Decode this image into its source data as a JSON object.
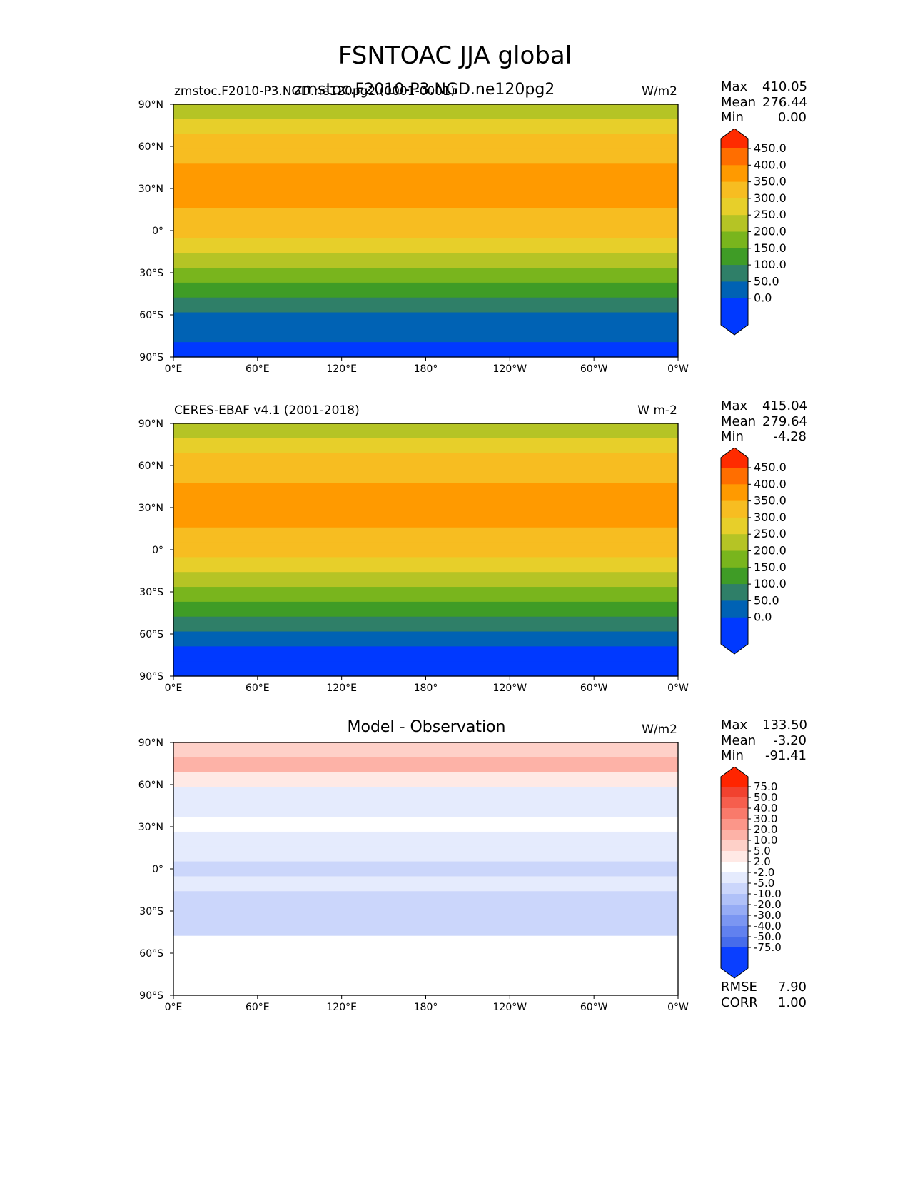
{
  "figure_title": "FSNTOAC JJA global",
  "lon_ticks": [
    "0°E",
    "60°E",
    "120°E",
    "180°",
    "120°W",
    "60°W",
    "0°W"
  ],
  "lat_ticks": [
    "90°N",
    "60°N",
    "30°N",
    "0°",
    "30°S",
    "60°S",
    "90°S"
  ],
  "chart_data": [
    {
      "type": "heatmap",
      "panel": "test",
      "title_left": "zmstoc.F2010-P3.NGD.ne120pg2.(0001-0001)",
      "title_center": "zmstoc.F2010-P3.NGD.ne120pg2",
      "title_right": "W/m2",
      "stats": {
        "max_label": "Max",
        "max": "410.05",
        "mean_label": "Mean",
        "mean": "276.44",
        "min_label": "Min",
        "min": "0.00"
      },
      "levels": [
        "450.0",
        "400.0",
        "350.0",
        "300.0",
        "250.0",
        "200.0",
        "150.0",
        "100.0",
        "50.0",
        "0.0"
      ],
      "colors": [
        "#ff2b00",
        "#ff6e00",
        "#ff9a00",
        "#f7bd21",
        "#e7cf2a",
        "#b5c425",
        "#79b51d",
        "#3f9c26",
        "#2f7f68",
        "#0062b4",
        "#0039ff"
      ],
      "zonal_band_levels": [
        5,
        4,
        3,
        3,
        2,
        2,
        2,
        3,
        3,
        4,
        5,
        6,
        7,
        8,
        9,
        9,
        10
      ]
    },
    {
      "type": "heatmap",
      "panel": "reference",
      "title_left": "CERES-EBAF v4.1 (2001-2018)",
      "title_center": "",
      "title_right": "W m-2",
      "stats": {
        "max_label": "Max",
        "max": "415.04",
        "mean_label": "Mean",
        "mean": "279.64",
        "min_label": "Min",
        "min": "-4.28"
      },
      "levels": [
        "450.0",
        "400.0",
        "350.0",
        "300.0",
        "250.0",
        "200.0",
        "150.0",
        "100.0",
        "50.0",
        "0.0"
      ],
      "colors": [
        "#ff2b00",
        "#ff6e00",
        "#ff9a00",
        "#f7bd21",
        "#e7cf2a",
        "#b5c425",
        "#79b51d",
        "#3f9c26",
        "#2f7f68",
        "#0062b4",
        "#0039ff"
      ],
      "zonal_band_levels": [
        5,
        4,
        3,
        3,
        2,
        2,
        2,
        3,
        3,
        4,
        5,
        6,
        7,
        8,
        9,
        10,
        10
      ]
    },
    {
      "type": "heatmap",
      "panel": "difference",
      "title_left": "",
      "title_center": "Model - Observation",
      "title_right": "W/m2",
      "stats": {
        "max_label": "Max",
        "max": "133.50",
        "mean_label": "Mean",
        "mean": "-3.20",
        "min_label": "Min",
        "min": "-91.41"
      },
      "levels": [
        "75.0",
        "50.0",
        "40.0",
        "30.0",
        "20.0",
        "10.0",
        "5.0",
        "2.0",
        "-2.0",
        "-5.0",
        "-10.0",
        "-20.0",
        "-30.0",
        "-40.0",
        "-50.0",
        "-75.0"
      ],
      "colors": [
        "#ff2500",
        "#f1422f",
        "#f65e4d",
        "#f97a6b",
        "#fb9689",
        "#fdb2a7",
        "#fed0c8",
        "#ffe9e5",
        "#ffffff",
        "#e5ebfd",
        "#cbd6fb",
        "#b0c1f8",
        "#96acf5",
        "#7b96f2",
        "#6181ef",
        "#466ceb",
        "#0a3fff"
      ],
      "zonal_band_levels": [
        6,
        5,
        7,
        9,
        9,
        8,
        9,
        9,
        10,
        9,
        10,
        10,
        10,
        8,
        8,
        8,
        8
      ]
    }
  ],
  "metrics": {
    "rmse_label": "RMSE",
    "rmse": "7.90",
    "corr_label": "CORR",
    "corr": "1.00"
  }
}
